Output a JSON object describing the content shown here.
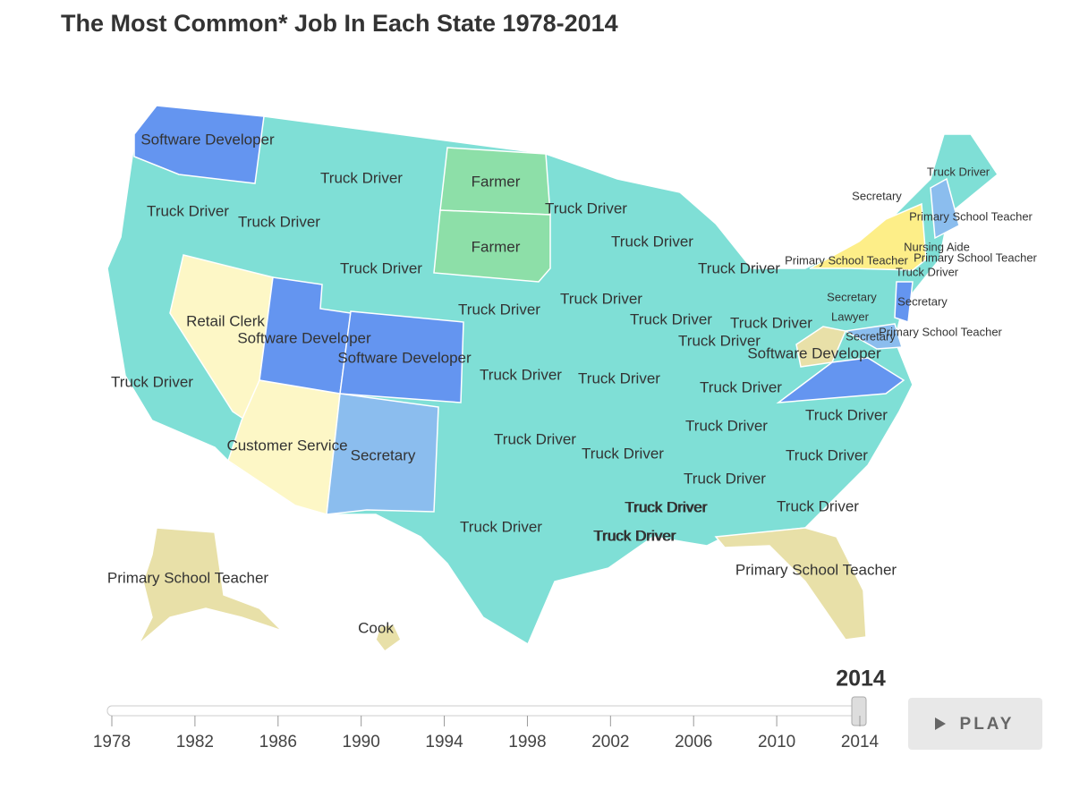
{
  "header": {
    "title": "The Most Common* Job In Each State 1978-2014"
  },
  "map": {
    "labels": [
      "Software Developer",
      "Truck Driver",
      "Farmer",
      "Truck Driver",
      "Truck Driver",
      "Truck Driver",
      "Farmer",
      "Truck Driver",
      "Truck Driver",
      "Truck Driver",
      "Truck Driver",
      "Truck Driver",
      "Retail Clerk",
      "Software Developer",
      "Software Developer",
      "Truck Driver",
      "Truck Driver",
      "Truck Driver",
      "Truck Driver",
      "Truck Driver",
      "Truck Driver",
      "Customer Service",
      "Secretary",
      "Truck Driver",
      "Truck Driver",
      "Truck Driver",
      "Truck Driver",
      "Truck Driver",
      "Truck Driver",
      "Truck Driver",
      "Truck Driver",
      "Truck Driver",
      "Primary School Teacher",
      "Primary School Teacher",
      "Cook",
      "Truck Driver",
      "Truck Driver",
      "Secretary",
      "Primary School Teacher",
      "Nursing Aide",
      "Primary School Teacher",
      "Primary School Teacher",
      "Truck Driver",
      "Secretary",
      "Secretary",
      "Lawyer",
      "Secretary",
      "Primary School Teacher",
      "Software Developer",
      "Truck Driver",
      "Truck Driver",
      "Truck Driver"
    ]
  },
  "timeline": {
    "current": "2014",
    "years": [
      "1978",
      "1982",
      "1986",
      "1990",
      "1994",
      "1998",
      "2002",
      "2006",
      "2010",
      "2014"
    ],
    "button": "PLAY"
  }
}
